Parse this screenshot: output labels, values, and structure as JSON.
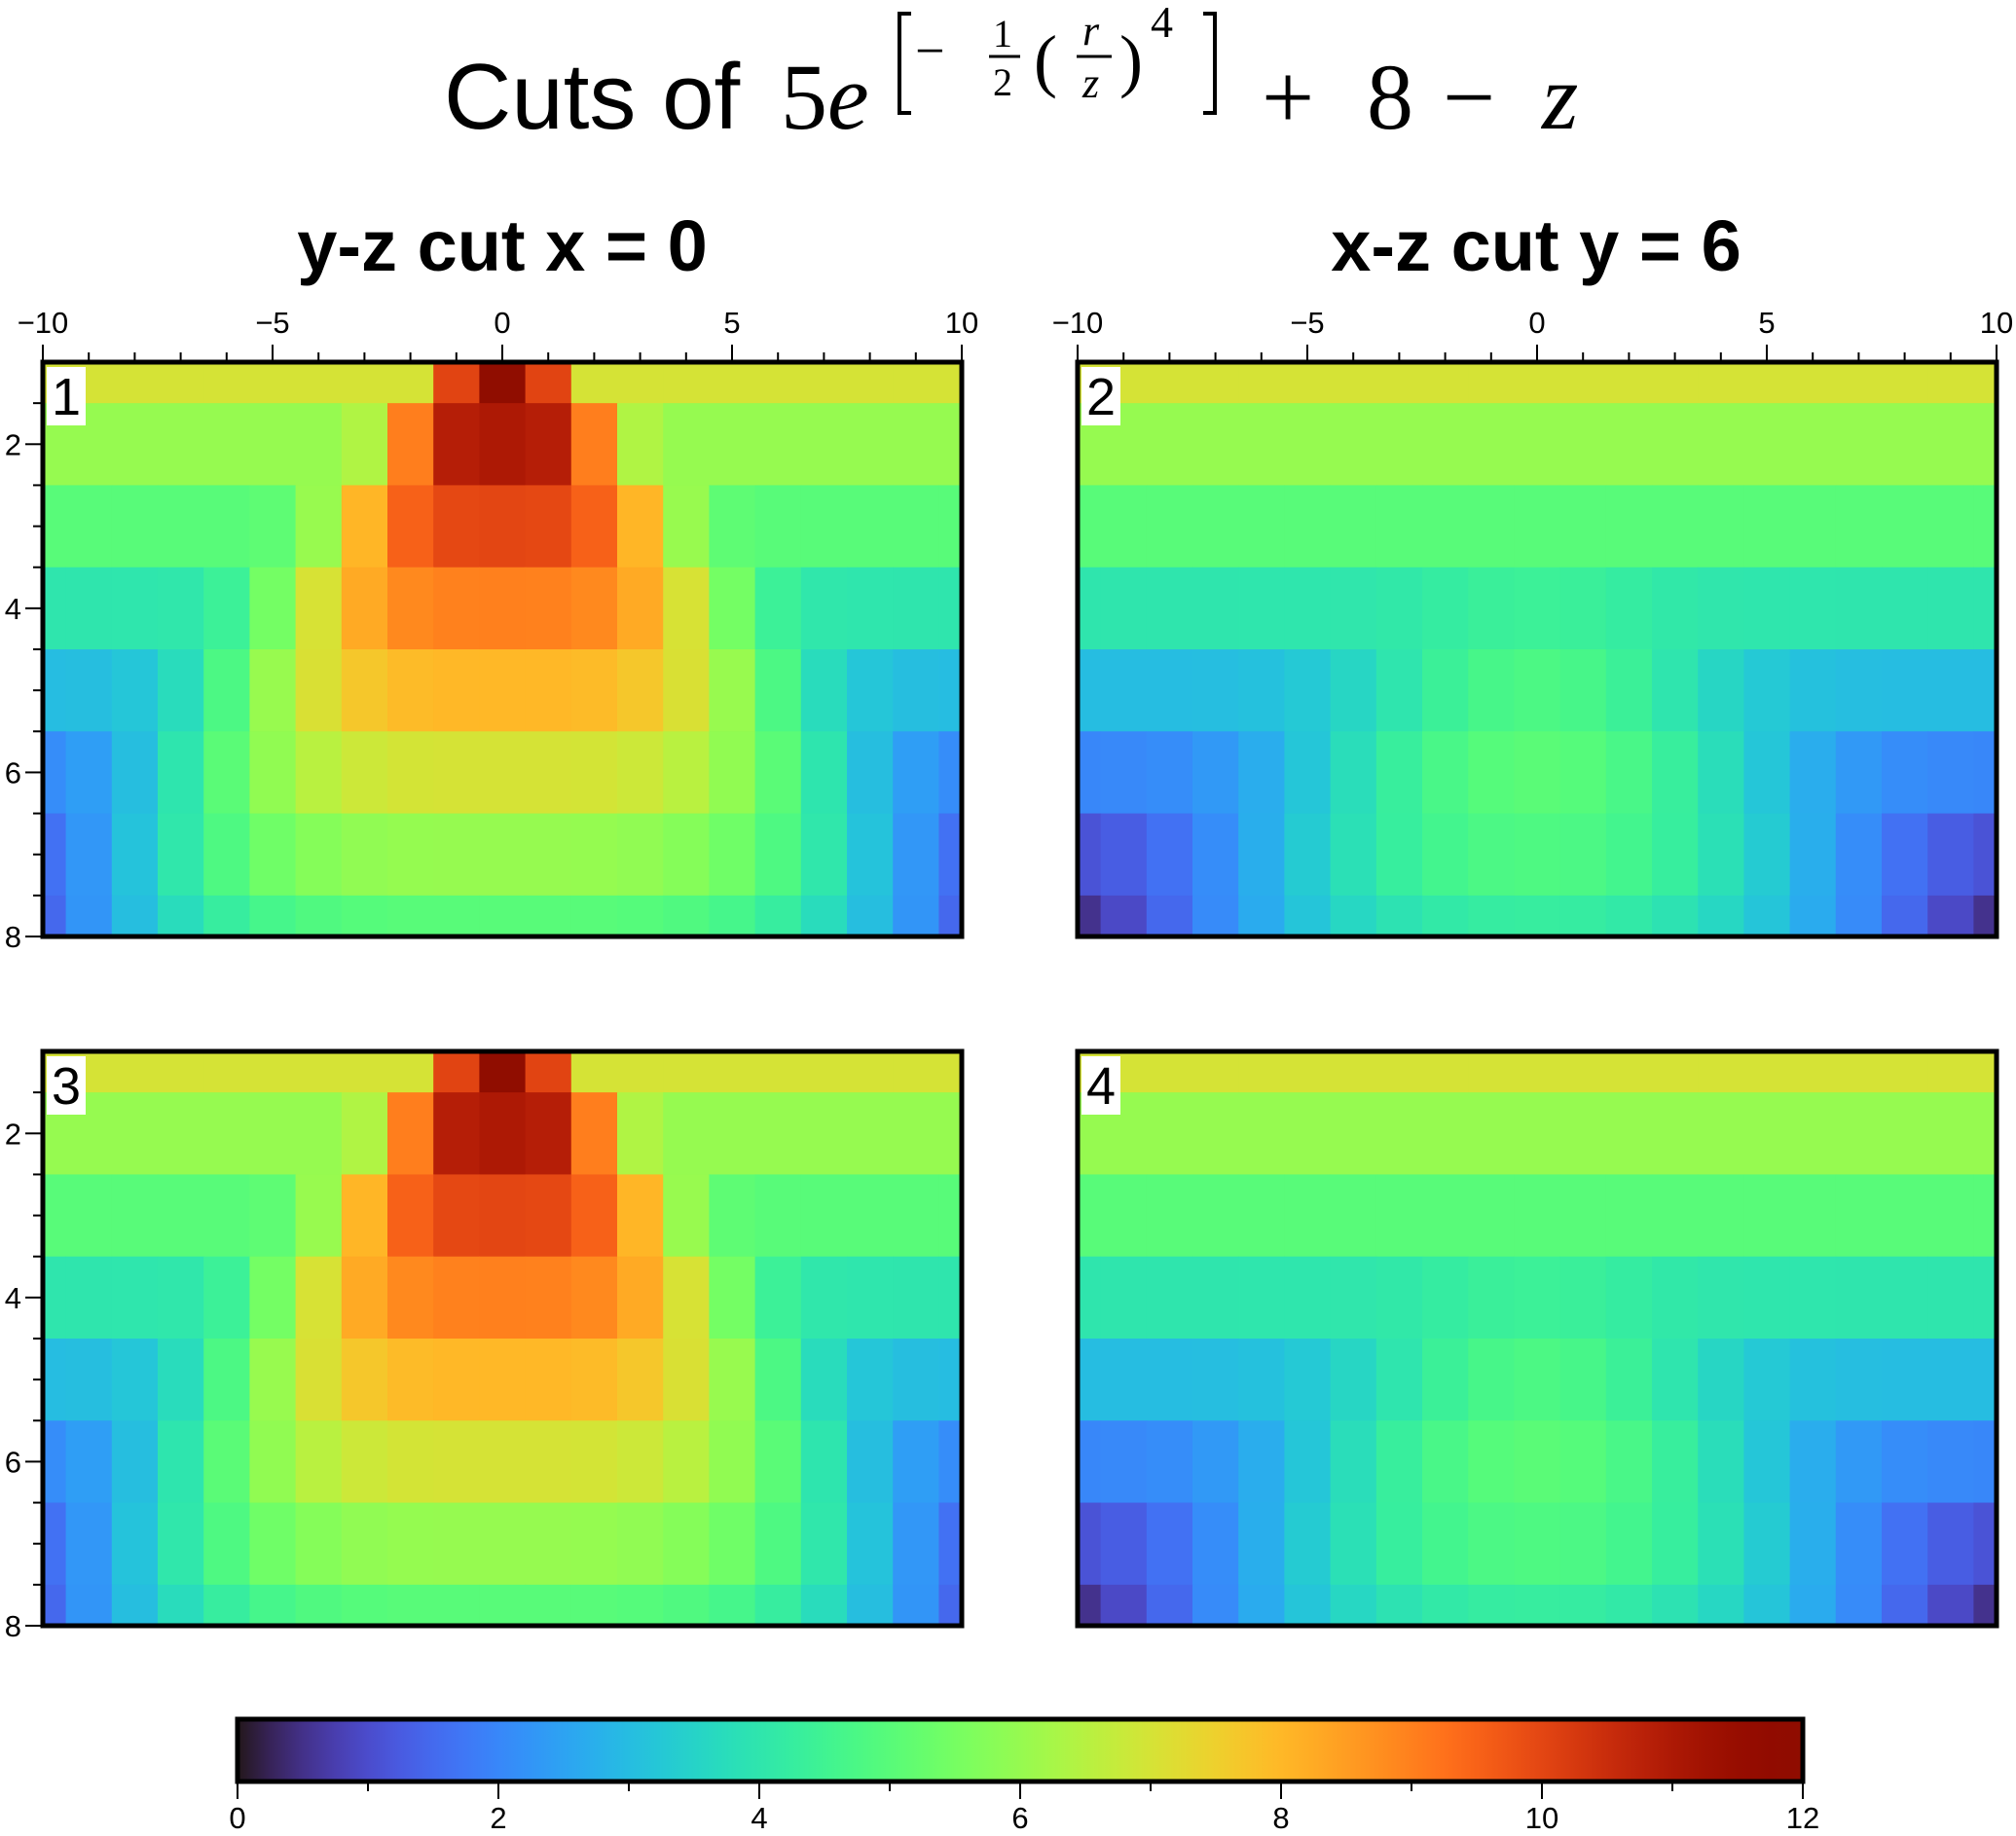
{
  "figure": {
    "title_prefix": "Cuts of ",
    "title_formula": {
      "coef": "5",
      "base": "e",
      "exp_minus": "−",
      "exp_frac_num": "1",
      "exp_frac_den": "2",
      "exp_r": "r",
      "exp_z": "z",
      "exp_power": "4",
      "tail_plus": "+",
      "tail_const": "8",
      "tail_minus": "−",
      "tail_z": "z"
    },
    "column_titles": [
      "y-z cut x = 0",
      "x-z cut y = 6"
    ],
    "panel_labels": [
      "1",
      "2",
      "3",
      "4"
    ]
  },
  "colors": {
    "frame": "#000000",
    "background": "#ffffff",
    "colormap_name": "turbo"
  },
  "chart_data": [
    {
      "type": "heatmap",
      "panel": "1",
      "title": "y-z cut x = 0",
      "x_axis": "y",
      "y_axis": "z",
      "x_range": [
        -10,
        10
      ],
      "z_range": [
        1,
        8
      ],
      "y_inverted": true,
      "x_ticks": [
        -10,
        -5,
        0,
        5,
        10
      ],
      "y_ticks": [
        2,
        4,
        6,
        8
      ],
      "cut": {
        "axis": "x",
        "value": 0
      },
      "function": "5*exp(-0.5*(r/z)^4) + 8 - z",
      "grid_step": 1,
      "show_x_tick_labels": true
    },
    {
      "type": "heatmap",
      "panel": "2",
      "title": "x-z cut y = 6",
      "x_axis": "x",
      "y_axis": "z",
      "x_range": [
        -10,
        10
      ],
      "z_range": [
        1,
        8
      ],
      "y_inverted": true,
      "x_ticks": [
        -10,
        -5,
        0,
        5,
        10
      ],
      "y_ticks": [],
      "cut": {
        "axis": "y",
        "value": 6
      },
      "function": "5*exp(-0.5*(r/z)^4) + 8 - z",
      "grid_step": 1,
      "show_x_tick_labels": true
    },
    {
      "type": "heatmap",
      "panel": "3",
      "x_axis": "y",
      "y_axis": "z",
      "x_range": [
        -10,
        10
      ],
      "z_range": [
        1,
        8
      ],
      "y_inverted": true,
      "x_ticks": [],
      "y_ticks": [
        2,
        4,
        6,
        8
      ],
      "cut": {
        "axis": "x",
        "value": 0
      },
      "function": "5*exp(-0.5*(r/z)^4) + 8 - z",
      "grid_step": 1,
      "show_x_tick_labels": false
    },
    {
      "type": "heatmap",
      "panel": "4",
      "x_axis": "x",
      "y_axis": "z",
      "x_range": [
        -10,
        10
      ],
      "z_range": [
        1,
        8
      ],
      "y_inverted": true,
      "x_ticks": [],
      "y_ticks": [],
      "cut": {
        "axis": "y",
        "value": 6
      },
      "function": "5*exp(-0.5*(r/z)^4) + 8 - z",
      "grid_step": 1,
      "show_x_tick_labels": false
    }
  ],
  "colorbar": {
    "range": [
      0,
      12
    ],
    "ticks": [
      0,
      2,
      4,
      6,
      8,
      10,
      12
    ],
    "colormap": "turbo"
  }
}
